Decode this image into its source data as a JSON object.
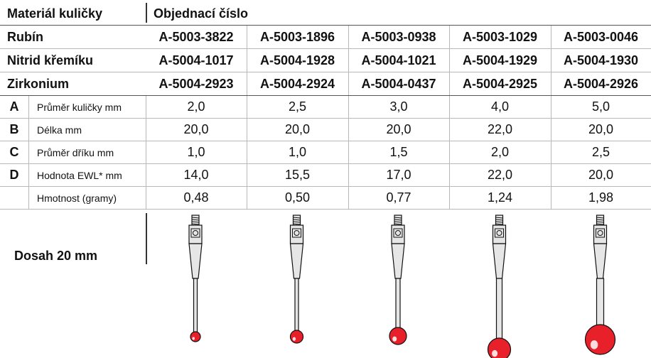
{
  "header": {
    "material_label": "Materiál kuličky",
    "order_label": "Objednací číslo"
  },
  "materials": [
    {
      "name": "Rubín",
      "parts": [
        "A-5003-3822",
        "A-5003-1896",
        "A-5003-0938",
        "A-5003-1029",
        "A-5003-0046"
      ]
    },
    {
      "name": "Nitrid křemíku",
      "parts": [
        "A-5004-1017",
        "A-5004-1928",
        "A-5004-1021",
        "A-5004-1929",
        "A-5004-1930"
      ]
    },
    {
      "name": "Zirkonium",
      "parts": [
        "A-5004-2923",
        "A-5004-2924",
        "A-5004-0437",
        "A-5004-2925",
        "A-5004-2926"
      ]
    }
  ],
  "specs": [
    {
      "letter": "A",
      "label": "Průměr kuličky mm",
      "values": [
        "2,0",
        "2,5",
        "3,0",
        "4,0",
        "5,0"
      ]
    },
    {
      "letter": "B",
      "label": "Délka mm",
      "values": [
        "20,0",
        "20,0",
        "20,0",
        "22,0",
        "20,0"
      ]
    },
    {
      "letter": "C",
      "label": "Průměr dříku mm",
      "values": [
        "1,0",
        "1,0",
        "1,5",
        "2,0",
        "2,5"
      ]
    },
    {
      "letter": "D",
      "label": "Hodnota EWL* mm",
      "values": [
        "14,0",
        "15,5",
        "17,0",
        "22,0",
        "20,0"
      ]
    },
    {
      "label": "Hmotnost (gramy)",
      "values": [
        "0,48",
        "0,50",
        "0,77",
        "1,24",
        "1,98"
      ]
    }
  ],
  "reach_label": "Dosah 20 mm"
}
